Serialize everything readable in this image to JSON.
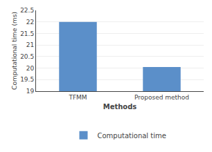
{
  "chart_data": {
    "type": "bar",
    "xlabel": "Methods",
    "ylabel": "Computational time (ms)",
    "categories": [
      "TFMM",
      "Proposed method"
    ],
    "series": [
      {
        "name": "Computational time",
        "color": "#5b8fc9",
        "values": [
          22.0,
          20.05
        ]
      }
    ],
    "ylim": [
      19,
      22.5
    ],
    "yticks": [
      19,
      19.5,
      20,
      20.5,
      21,
      21.5,
      22,
      22.5
    ],
    "grid": true,
    "legend": "bottom"
  }
}
